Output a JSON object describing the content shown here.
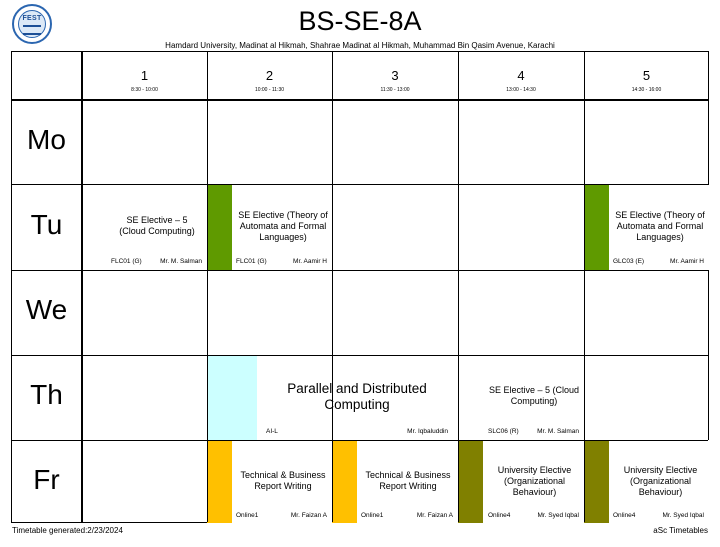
{
  "header": {
    "title": "BS-SE-8A",
    "subtitle": "Hamdard University, Madinat al Hikmah, Shahrae Madinat al Hikmah, Muhammad Bin Qasim Avenue, Karachi",
    "logo_text": "FEST"
  },
  "periods": [
    {
      "num": "1",
      "time": "8:30 - 10:00"
    },
    {
      "num": "2",
      "time": "10:00 - 11:30"
    },
    {
      "num": "3",
      "time": "11:30 - 13:00"
    },
    {
      "num": "4",
      "time": "13:00 - 14:30"
    },
    {
      "num": "5",
      "time": "14:30 - 16:00"
    }
  ],
  "days": [
    "Mo",
    "Tu",
    "We",
    "Th",
    "Fr"
  ],
  "lessons": {
    "tu1": {
      "title": "SE Elective – 5 (Cloud Computing)",
      "room": "FLC01 (G)",
      "teacher": "Mr. M. Salman",
      "color": "#ffffff"
    },
    "tu2": {
      "title": "SE Elective (Theory of Automata and Formal Languages)",
      "room": "FLC01 (G)",
      "teacher": "Mr. Aamir H",
      "color": "#5f9a00"
    },
    "tu5": {
      "title": "SE Elective (Theory of Automata and Formal Languages)",
      "room": "GLC03 (E)",
      "teacher": "Mr. Aamir H",
      "color": "#5f9a00"
    },
    "th23": {
      "title": "Parallel and Distributed Computing",
      "room": "AI-L",
      "teacher": "Mr. Iqbaluddin",
      "color": "#ccffff"
    },
    "th4": {
      "title": "SE Elective – 5 (Cloud Computing)",
      "room": "SLC06 (R)",
      "teacher": "Mr. M. Salman",
      "color": "#ffffff"
    },
    "fr2": {
      "title": "Technical & Business Report Writing",
      "room": "Online1",
      "teacher": "Mr. Faizan A",
      "color": "#ffc000"
    },
    "fr3": {
      "title": "Technical & Business Report Writing",
      "room": "Online1",
      "teacher": "Mr. Faizan A",
      "color": "#ffc000"
    },
    "fr4": {
      "title": "University Elective (Organizational Behaviour)",
      "room": "Online4",
      "teacher": "Mr. Syed Iqbal",
      "color": "#808000"
    },
    "fr5": {
      "title": "University Elective (Organizational Behaviour)",
      "room": "Online4",
      "teacher": "Mr. Syed Iqbal",
      "color": "#808000"
    }
  },
  "footer": {
    "generated": "Timetable generated:2/23/2024",
    "brand": "aSc Timetables"
  }
}
